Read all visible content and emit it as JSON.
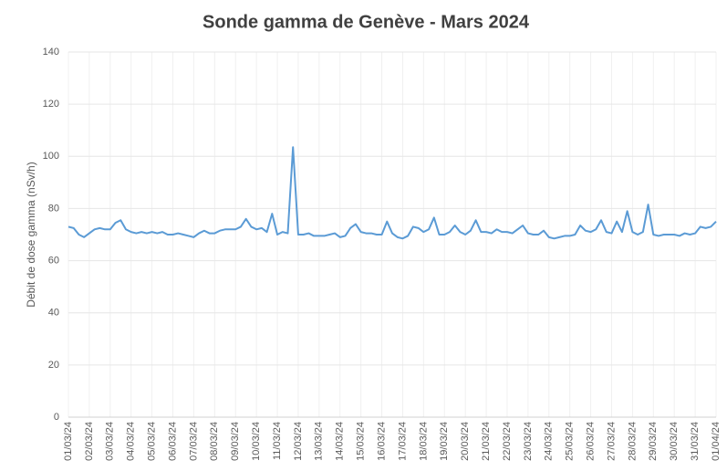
{
  "chart_data": {
    "type": "line",
    "title": "Sonde gamma de Genève - Mars 2024",
    "y_label": "Débit de dose gamma (nSv/h)",
    "color": "#5b9bd5",
    "grid": true,
    "ylim": [
      0,
      140
    ],
    "yticks": [
      0,
      20,
      40,
      60,
      80,
      100,
      120,
      140
    ],
    "categories": [
      "01/03/24",
      null,
      null,
      null,
      "02/03/24",
      null,
      null,
      null,
      "03/03/24",
      null,
      null,
      null,
      "04/03/24",
      null,
      null,
      null,
      "05/03/24",
      null,
      null,
      null,
      "06/03/24",
      null,
      null,
      null,
      "07/03/24",
      null,
      null,
      null,
      "08/03/24",
      null,
      null,
      null,
      "09/03/24",
      null,
      null,
      null,
      "10/03/24",
      null,
      null,
      null,
      "11/03/24",
      null,
      null,
      null,
      "12/03/24",
      null,
      null,
      null,
      "13/03/24",
      null,
      null,
      null,
      "14/03/24",
      null,
      null,
      null,
      "15/03/24",
      null,
      null,
      null,
      "16/03/24",
      null,
      null,
      null,
      "17/03/24",
      null,
      null,
      null,
      "18/03/24",
      null,
      null,
      null,
      "19/03/24",
      null,
      null,
      null,
      "20/03/24",
      null,
      null,
      null,
      "21/03/24",
      null,
      null,
      null,
      "22/03/24",
      null,
      null,
      null,
      "23/03/24",
      null,
      null,
      null,
      "24/03/24",
      null,
      null,
      null,
      "25/03/24",
      null,
      null,
      null,
      "26/03/24",
      null,
      null,
      null,
      "27/03/24",
      null,
      null,
      null,
      "28/03/24",
      null,
      null,
      null,
      "29/03/24",
      null,
      null,
      null,
      "30/03/24",
      null,
      null,
      null,
      "31/03/24",
      null,
      null,
      null,
      "01/04/24"
    ],
    "values": [
      73,
      72.5,
      70,
      69,
      70.5,
      72,
      72.5,
      72,
      72,
      74.5,
      75.5,
      72,
      71,
      70.5,
      71,
      70.5,
      71,
      70.5,
      71,
      70,
      70,
      70.5,
      70,
      69.5,
      69,
      70.5,
      71.5,
      70.5,
      70.5,
      71.5,
      72,
      72,
      72,
      73,
      76,
      73,
      72,
      72.5,
      71,
      78,
      70,
      71,
      70.5,
      103.5,
      70,
      70,
      70.5,
      69.5,
      69.5,
      69.5,
      70,
      70.5,
      69,
      69.5,
      72.5,
      74,
      71,
      70.5,
      70.5,
      70,
      70,
      75,
      70.5,
      69,
      68.5,
      69.5,
      73,
      72.5,
      71,
      72,
      76.5,
      70,
      70,
      71,
      73.5,
      71,
      70,
      71.5,
      75.5,
      71,
      71,
      70.5,
      72,
      71,
      71,
      70.5,
      72,
      73.5,
      70.5,
      70,
      70,
      71.5,
      69,
      68.5,
      69,
      69.5,
      69.5,
      70,
      73.5,
      71.5,
      71,
      72,
      75.5,
      71,
      70.5,
      75,
      71,
      79,
      71,
      70,
      71,
      81.5,
      70,
      69.5,
      70,
      70,
      70,
      69.5,
      70.5,
      70,
      70.5,
      73,
      72.5,
      73,
      75
    ]
  }
}
